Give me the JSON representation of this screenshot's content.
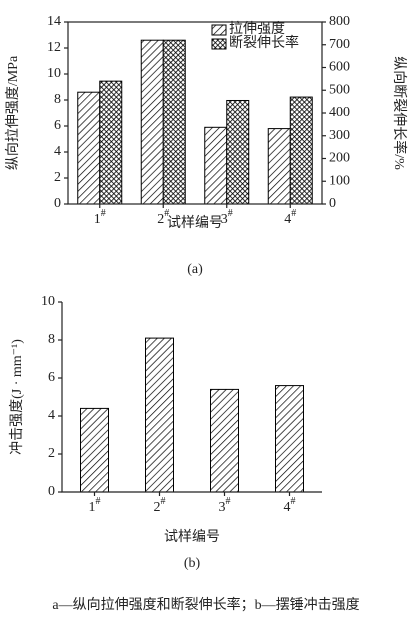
{
  "chart_data": [
    {
      "type": "bar",
      "subtitle": "(a)",
      "x_label": "试样编号",
      "y_label": "纵向拉伸强度/MPa",
      "y2_label": "纵向断裂伸长率/%",
      "categories": [
        "1#",
        "2#",
        "3#",
        "4#"
      ],
      "series": [
        {
          "name": "拉伸强度",
          "color": "#000000",
          "hatch": "diagonal",
          "values": [
            8.6,
            12.6,
            5.9,
            5.8
          ]
        },
        {
          "name": "断裂伸长率",
          "color": "#000000",
          "hatch": "crosshatch",
          "axis": "y2",
          "values": [
            540,
            720,
            455,
            470
          ]
        }
      ],
      "ylim": [
        0,
        14
      ],
      "yticks": [
        0,
        2,
        4,
        6,
        8,
        10,
        12,
        14
      ],
      "y2lim": [
        0,
        800
      ],
      "y2ticks": [
        0,
        100,
        200,
        300,
        400,
        500,
        600,
        700,
        800
      ]
    },
    {
      "type": "bar",
      "subtitle": "(b)",
      "x_label": "试样编号",
      "y_label": "冲击强度(J · mm⁻¹)",
      "categories": [
        "1#",
        "2#",
        "3#",
        "4#"
      ],
      "series": [
        {
          "color": "#000000",
          "hatch": "diagonal",
          "values": [
            4.4,
            8.1,
            5.4,
            5.6
          ]
        }
      ],
      "ylim": [
        0,
        10
      ],
      "yticks": [
        0,
        2,
        4,
        6,
        8,
        10
      ]
    }
  ],
  "caption": "a—纵向拉伸强度和断裂伸长率；b—摆锤冲击强度"
}
